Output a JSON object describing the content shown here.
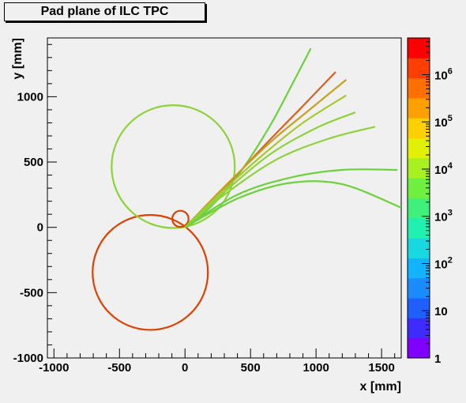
{
  "chart_data": {
    "type": "scatter",
    "title": "Pad plane of ILC TPC",
    "xlabel": "x [mm]",
    "ylabel": "y [mm]",
    "xlim": [
      -1050,
      1650
    ],
    "ylim": [
      -1000,
      1450
    ],
    "x_ticks": [
      -1000,
      -500,
      0,
      500,
      1000,
      1500
    ],
    "y_ticks": [
      -1000,
      -500,
      0,
      500,
      1000
    ],
    "x_tick_labels": [
      "-1000",
      "-500",
      "0",
      "500",
      "1000",
      "1500"
    ],
    "y_tick_labels": [
      "-1000",
      "-500",
      "0",
      "500",
      "1000"
    ],
    "grid": false,
    "legend": "none",
    "color_scale": {
      "type": "log",
      "range": [
        1,
        6000000
      ],
      "colors": [
        "#7f00ff",
        "#3e2bff",
        "#1f5fff",
        "#1a8cff",
        "#13b4ff",
        "#18d8e0",
        "#20f0b0",
        "#3ff07a",
        "#6ff040",
        "#a8f020",
        "#e0f000",
        "#ffd000",
        "#ffa000",
        "#ff7000",
        "#ff3e00",
        "#ff0000"
      ],
      "tick_labels": [
        {
          "base": "1",
          "exp": ""
        },
        {
          "base": "10",
          "exp": ""
        },
        {
          "base": "10",
          "exp": "2"
        },
        {
          "base": "10",
          "exp": "3"
        },
        {
          "base": "10",
          "exp": "4"
        },
        {
          "base": "10",
          "exp": "5"
        },
        {
          "base": "10",
          "exp": "6"
        }
      ]
    },
    "tracks": [
      {
        "shape": "circle",
        "center": [
          -265,
          -345
        ],
        "radius": 440,
        "color": "#e04000"
      },
      {
        "shape": "circle",
        "center": [
          -90,
          465
        ],
        "radius": 470,
        "color": "#8ed23a"
      },
      {
        "shape": "circle",
        "center": [
          -35,
          65
        ],
        "radius": 62,
        "color": "#e04000"
      },
      {
        "shape": "curve",
        "points": [
          [
            0,
            0
          ],
          [
            200,
            160
          ],
          [
            420,
            420
          ],
          [
            650,
            780
          ],
          [
            820,
            1100
          ],
          [
            960,
            1370
          ]
        ],
        "color": "#6cd23c"
      },
      {
        "shape": "curve",
        "points": [
          [
            0,
            0
          ],
          [
            300,
            300
          ],
          [
            600,
            620
          ],
          [
            900,
            930
          ],
          [
            1150,
            1190
          ]
        ],
        "color": "#d66020"
      },
      {
        "shape": "curve",
        "points": [
          [
            0,
            0
          ],
          [
            300,
            310
          ],
          [
            650,
            650
          ],
          [
            950,
            900
          ],
          [
            1230,
            1130
          ]
        ],
        "color": "#c8a020"
      },
      {
        "shape": "curve",
        "points": [
          [
            0,
            0
          ],
          [
            300,
            290
          ],
          [
            600,
            560
          ],
          [
            900,
            800
          ],
          [
            1230,
            1010
          ]
        ],
        "color": "#a8c830"
      },
      {
        "shape": "curve",
        "points": [
          [
            0,
            0
          ],
          [
            300,
            270
          ],
          [
            650,
            560
          ],
          [
            1000,
            760
          ],
          [
            1300,
            880
          ]
        ],
        "color": "#8ed23a"
      },
      {
        "shape": "curve",
        "points": [
          [
            0,
            0
          ],
          [
            300,
            250
          ],
          [
            700,
            520
          ],
          [
            1100,
            680
          ],
          [
            1450,
            770
          ]
        ],
        "color": "#8ed23a"
      },
      {
        "shape": "curve",
        "points": [
          [
            0,
            0
          ],
          [
            400,
            250
          ],
          [
            800,
            380
          ],
          [
            1200,
            440
          ],
          [
            1620,
            440
          ]
        ],
        "color": "#6cd23c"
      },
      {
        "shape": "curve",
        "points": [
          [
            0,
            0
          ],
          [
            400,
            220
          ],
          [
            800,
            340
          ],
          [
            1200,
            330
          ],
          [
            1650,
            150
          ]
        ],
        "color": "#6cd23c"
      }
    ]
  }
}
